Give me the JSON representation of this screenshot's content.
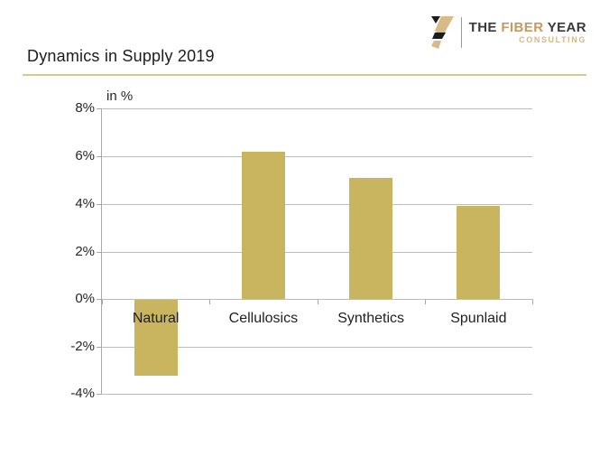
{
  "slide": {
    "title": "Dynamics in Supply 2019"
  },
  "logo": {
    "word_the": "THE",
    "word_fiber": "FIBER",
    "word_year": "YEAR",
    "word_consulting": "CONSULTING"
  },
  "colors": {
    "bar": "#c9b45f",
    "accent_rule": "#d8c98f",
    "logo_gold": "#c29b62",
    "logo_dark": "#3a3a3a",
    "logo_consulting": "#cfb98a"
  },
  "chart_data": {
    "type": "bar",
    "title": "Dynamics in Supply 2019",
    "unit_label": "in %",
    "categories": [
      "Natural",
      "Cellulosics",
      "Synthetics",
      "Spunlaid"
    ],
    "values": [
      -3.2,
      6.2,
      5.1,
      3.9
    ],
    "ylim": [
      -4,
      8
    ],
    "ytick_step": 2,
    "ytick_labels": [
      "8%",
      "6%",
      "4%",
      "2%",
      "0%",
      "-2%",
      "-4%"
    ],
    "grid": true,
    "legend": false,
    "bar_color": "#c9b45f"
  }
}
